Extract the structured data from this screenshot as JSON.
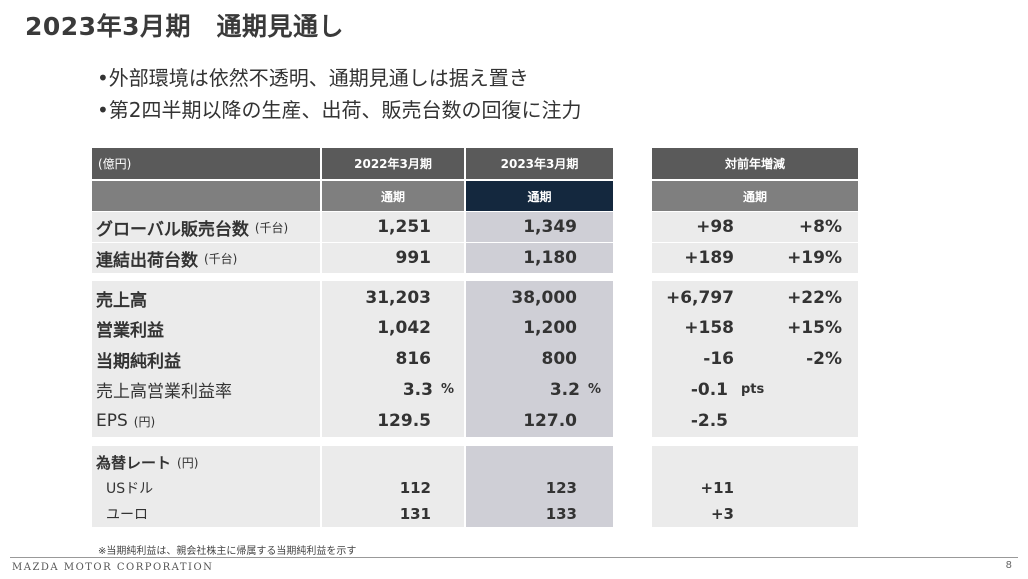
{
  "title": "2023年3月期　通期見通し",
  "bullets": [
    "•外部環境は依然不透明、通期見通しは据え置き",
    "•第2四半期以降の生産、出荷、販売台数の回復に注力"
  ],
  "table": {
    "unit_label": "(億円)",
    "col_fy2022": "2022年3月期",
    "col_fy2023": "2023年3月期",
    "col_yoy": "対前年増減",
    "sub_full_year": "通期",
    "rows": [
      {
        "label": "グローバル販売台数",
        "sub": "(千台)",
        "fy2022": "1,251",
        "fy2023": "1,349",
        "diff": "+98",
        "pct": "+8%"
      },
      {
        "label": "連結出荷台数",
        "sub": "(千台)",
        "fy2022": "991",
        "fy2023": "1,180",
        "diff": "+189",
        "pct": "+19%"
      },
      {
        "label": "売上高",
        "sub": "",
        "fy2022": "31,203",
        "fy2023": "38,000",
        "diff": "+6,797",
        "pct": "+22%"
      },
      {
        "label": "営業利益",
        "sub": "",
        "fy2022": "1,042",
        "fy2023": "1,200",
        "diff": "+158",
        "pct": "+15%"
      },
      {
        "label": "当期純利益",
        "sub": "",
        "fy2022": "816",
        "fy2023": "800",
        "diff": "-16",
        "pct": "-2%"
      },
      {
        "label": "売上高営業利益率",
        "sub": "",
        "fy2022": "3.3",
        "fy2022_unit": "%",
        "fy2023": "3.2",
        "fy2023_unit": "%",
        "diff": "-0.1",
        "diff_unit": "pts",
        "pct": ""
      },
      {
        "label": "EPS",
        "sub": "(円)",
        "fy2022": "129.5",
        "fy2023": "127.0",
        "diff": "-2.5",
        "pct": ""
      }
    ],
    "fx": {
      "label": "為替レート",
      "sub": "(円)",
      "usd": {
        "label": "USドル",
        "fy2022": "112",
        "fy2023": "123",
        "diff": "+11"
      },
      "eur": {
        "label": "ユーロ",
        "fy2022": "131",
        "fy2023": "133",
        "diff": "+3"
      }
    }
  },
  "footnote": "※当期純利益は、親会社株主に帰属する当期純利益を示す",
  "footer": {
    "brand": "MAZDA MOTOR CORPORATION",
    "page": "8"
  }
}
